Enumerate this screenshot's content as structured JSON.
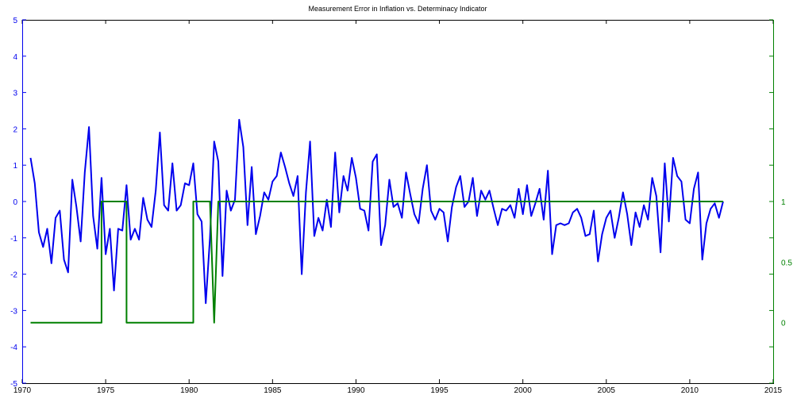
{
  "chart_data": {
    "type": "line",
    "title": "Measurement Error in Inflation vs. Determinacy Indicator",
    "xlim": [
      1970,
      2015
    ],
    "x_ticks": [
      1970,
      1975,
      1980,
      1985,
      1990,
      1995,
      2000,
      2005,
      2010,
      2015
    ],
    "y_left": {
      "lim": [
        -5,
        5
      ],
      "ticks": [
        -5,
        -4,
        -3,
        -2,
        -1,
        0,
        1,
        2,
        3,
        4,
        5
      ],
      "color": "#0000ee"
    },
    "y_right": {
      "lim": [
        -0.5,
        2.5
      ],
      "ticks": [
        0,
        0.5,
        1
      ],
      "tick_labels": [
        "0",
        "0.5",
        "1"
      ],
      "color": "#008000"
    },
    "grid": false,
    "series": [
      {
        "axis": "left",
        "color": "#0000ee",
        "x": [
          1970.5,
          1970.75,
          1971.0,
          1971.25,
          1971.5,
          1971.75,
          1972.0,
          1972.25,
          1972.5,
          1972.75,
          1973.0,
          1973.25,
          1973.5,
          1973.75,
          1974.0,
          1974.25,
          1974.5,
          1974.75,
          1975.0,
          1975.25,
          1975.5,
          1975.75,
          1976.0,
          1976.25,
          1976.5,
          1976.75,
          1977.0,
          1977.25,
          1977.5,
          1977.75,
          1978.0,
          1978.25,
          1978.5,
          1978.75,
          1979.0,
          1979.25,
          1979.5,
          1979.75,
          1980.0,
          1980.25,
          1980.5,
          1980.75,
          1981.0,
          1981.25,
          1981.5,
          1981.75,
          1982.0,
          1982.25,
          1982.5,
          1982.75,
          1983.0,
          1983.25,
          1983.5,
          1983.75,
          1984.0,
          1984.25,
          1984.5,
          1984.75,
          1985.0,
          1985.25,
          1985.5,
          1985.75,
          1986.0,
          1986.25,
          1986.5,
          1986.75,
          1987.0,
          1987.25,
          1987.5,
          1987.75,
          1988.0,
          1988.25,
          1988.5,
          1988.75,
          1989.0,
          1989.25,
          1989.5,
          1989.75,
          1990.0,
          1990.25,
          1990.5,
          1990.75,
          1991.0,
          1991.25,
          1991.5,
          1991.75,
          1992.0,
          1992.25,
          1992.5,
          1992.75,
          1993.0,
          1993.25,
          1993.5,
          1993.75,
          1994.0,
          1994.25,
          1994.5,
          1994.75,
          1995.0,
          1995.25,
          1995.5,
          1995.75,
          1996.0,
          1996.25,
          1996.5,
          1996.75,
          1997.0,
          1997.25,
          1997.5,
          1997.75,
          1998.0,
          1998.25,
          1998.5,
          1998.75,
          1999.0,
          1999.25,
          1999.5,
          1999.75,
          2000.0,
          2000.25,
          2000.5,
          2000.75,
          2001.0,
          2001.25,
          2001.5,
          2001.75,
          2002.0,
          2002.25,
          2002.5,
          2002.75,
          2003.0,
          2003.25,
          2003.5,
          2003.75,
          2004.0,
          2004.25,
          2004.5,
          2004.75,
          2005.0,
          2005.25,
          2005.5,
          2005.75,
          2006.0,
          2006.25,
          2006.5,
          2006.75,
          2007.0,
          2007.25,
          2007.5,
          2007.75,
          2008.0,
          2008.25,
          2008.5,
          2008.75,
          2009.0,
          2009.25,
          2009.5,
          2009.75,
          2010.0,
          2010.25,
          2010.5,
          2010.75,
          2011.0,
          2011.25,
          2011.5,
          2011.75,
          2012.0
        ],
        "values": [
          1.2,
          0.5,
          -0.85,
          -1.25,
          -0.75,
          -1.7,
          -0.45,
          -0.25,
          -1.6,
          -1.95,
          0.6,
          -0.15,
          -1.1,
          0.8,
          2.05,
          -0.4,
          -1.3,
          0.65,
          -1.45,
          -0.75,
          -2.45,
          -0.75,
          -0.8,
          0.45,
          -1.05,
          -0.75,
          -1.05,
          0.1,
          -0.5,
          -0.7,
          0.3,
          1.9,
          -0.1,
          -0.25,
          1.05,
          -0.25,
          -0.1,
          0.5,
          0.45,
          1.05,
          -0.35,
          -0.55,
          -2.8,
          -1.0,
          1.65,
          1.1,
          -2.05,
          0.3,
          -0.25,
          0.05,
          2.25,
          1.5,
          -0.65,
          0.95,
          -0.9,
          -0.4,
          0.25,
          0.05,
          0.55,
          0.7,
          1.35,
          0.95,
          0.5,
          0.15,
          0.7,
          -2.0,
          0.25,
          1.65,
          -0.95,
          -0.45,
          -0.8,
          0.05,
          -0.7,
          1.35,
          -0.3,
          0.7,
          0.3,
          1.2,
          0.65,
          -0.2,
          -0.25,
          -0.8,
          1.1,
          1.3,
          -1.2,
          -0.65,
          0.6,
          -0.15,
          -0.05,
          -0.45,
          0.8,
          0.2,
          -0.35,
          -0.6,
          0.35,
          1.0,
          -0.25,
          -0.5,
          -0.2,
          -0.3,
          -1.1,
          -0.15,
          0.4,
          0.7,
          -0.15,
          0.0,
          0.65,
          -0.4,
          0.3,
          0.05,
          0.3,
          -0.2,
          -0.65,
          -0.2,
          -0.25,
          -0.1,
          -0.45,
          0.35,
          -0.35,
          0.45,
          -0.4,
          -0.05,
          0.35,
          -0.5,
          0.85,
          -1.45,
          -0.65,
          -0.6,
          -0.65,
          -0.6,
          -0.3,
          -0.2,
          -0.45,
          -0.95,
          -0.9,
          -0.25,
          -1.65,
          -0.9,
          -0.45,
          -0.25,
          -1.0,
          -0.45,
          0.25,
          -0.35,
          -1.2,
          -0.3,
          -0.7,
          -0.1,
          -0.5,
          0.65,
          0.15,
          -1.4,
          1.05,
          -0.55,
          1.2,
          0.7,
          0.55,
          -0.5,
          -0.6,
          0.35,
          0.8,
          -1.6,
          -0.6,
          -0.2,
          -0.05,
          -0.45,
          0.0
        ]
      },
      {
        "axis": "right",
        "color": "#008000",
        "x": [
          1970.5,
          1974.75,
          1974.75,
          1976.25,
          1976.25,
          1980.25,
          1980.25,
          1981.25,
          1981.5,
          1981.75,
          1981.75,
          2012.0
        ],
        "values": [
          0,
          0,
          1,
          1,
          0,
          0,
          1,
          1,
          0,
          1,
          1,
          1
        ]
      }
    ]
  }
}
